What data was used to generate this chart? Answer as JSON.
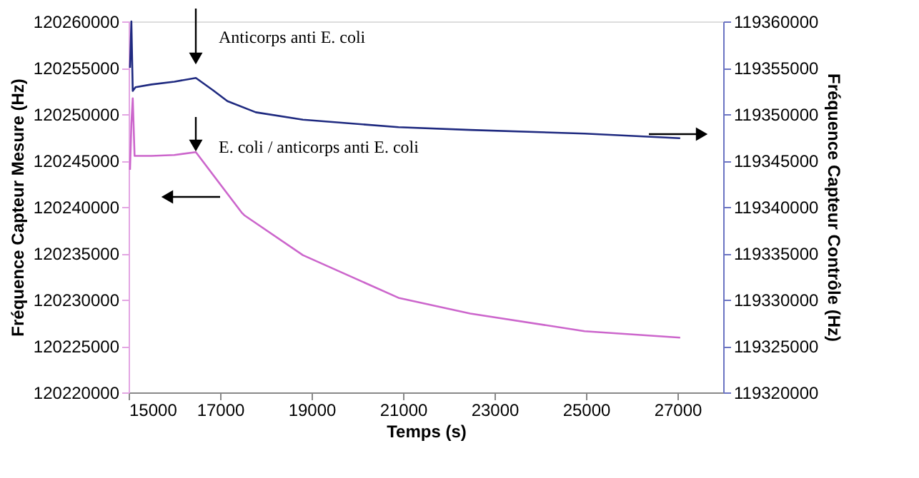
{
  "chart_data": {
    "type": "line",
    "xlabel": "Temps (s)",
    "ylabel": "Fréquence Capteur Mesure (Hz)",
    "y2label": "Fréquence Capteur Contrôle (Hz)",
    "xlim": [
      15000,
      28000
    ],
    "xticks": [
      15000,
      17000,
      19000,
      21000,
      23000,
      25000,
      27000
    ],
    "ylim": [
      120220000,
      120260000
    ],
    "yticks": [
      120220000,
      120225000,
      120230000,
      120235000,
      120240000,
      120245000,
      120250000,
      120255000,
      120260000
    ],
    "y2lim": [
      119320000,
      119360000
    ],
    "y2ticks": [
      119320000,
      119325000,
      119330000,
      119335000,
      119340000,
      119345000,
      119350000,
      119355000,
      119360000
    ],
    "grid": false,
    "marker": "none",
    "line_style": "solid",
    "annotations": [
      "Anticorps anti E. coli",
      "E. coli / anticorps anti E. coli"
    ],
    "series": [
      {
        "color": "#cc66cc",
        "x": [
          15030,
          15060,
          15090,
          15130,
          15500,
          16000,
          16470,
          17470,
          17530,
          18810,
          20900,
          22470,
          24970,
          27060
        ],
        "values": [
          120244000,
          120249000,
          120251700,
          120245500,
          120245500,
          120245600,
          120245900,
          120239400,
          120239100,
          120234800,
          120230200,
          120228500,
          120226600,
          120225900
        ]
      },
      {
        "color": "#1f2a80",
        "axis": "y2",
        "x": [
          15030,
          15060,
          15090,
          15150,
          15500,
          16000,
          16470,
          16840,
          17160,
          17780,
          18810,
          20900,
          22470,
          24970,
          27060
        ],
        "values": [
          119355000,
          119360000,
          119352500,
          119352900,
          119353200,
          119353500,
          119353900,
          119352600,
          119351400,
          119350200,
          119349400,
          119348600,
          119348300,
          119347900,
          119347400
        ]
      }
    ]
  }
}
